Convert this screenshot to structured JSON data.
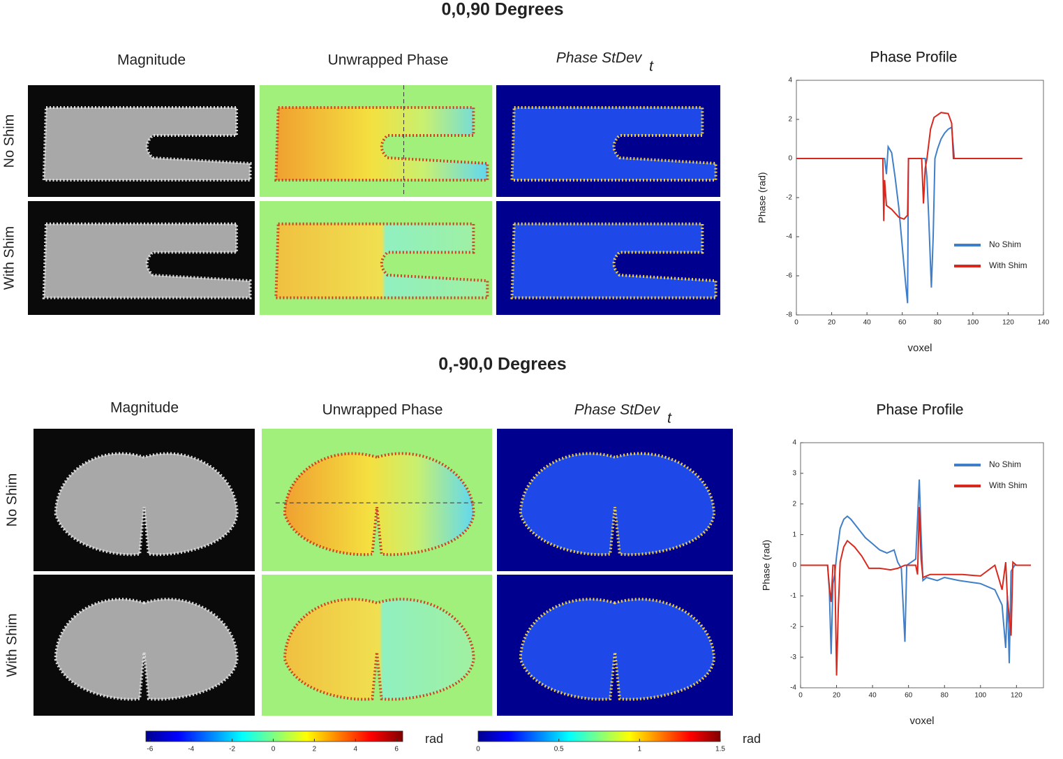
{
  "figure": {
    "sections": [
      {
        "title": "0,0,90 Degrees",
        "columns": [
          "Magnitude",
          "Unwrapped Phase",
          "Phase StDev",
          "Phase Profile"
        ],
        "subscript": "t",
        "rows": [
          "No Shim",
          "With Shim"
        ]
      },
      {
        "title": "0,-90,0 Degrees",
        "columns": [
          "Magnitude",
          "Unwrapped Phase",
          "Phase StDev",
          "Phase Profile"
        ],
        "subscript": "t",
        "rows": [
          "No Shim",
          "With Shim"
        ]
      }
    ],
    "colorbars": [
      {
        "lim": [
          -6.2,
          6.3
        ],
        "ticks": [
          -6,
          -4,
          -2,
          0,
          2,
          4,
          6
        ],
        "unit": "rad"
      },
      {
        "lim": [
          0,
          1.5
        ],
        "ticks": [
          0,
          0.5,
          1,
          1.5
        ],
        "unit": "rad"
      }
    ]
  },
  "chart_data": [
    {
      "type": "line",
      "title": "Phase Profile",
      "xlabel": "voxel",
      "ylabel": "Phase (rad)",
      "xlim": [
        0,
        140
      ],
      "ylim": [
        -8,
        4
      ],
      "xticks": [
        0,
        20,
        40,
        60,
        80,
        100,
        120,
        140
      ],
      "yticks": [
        -8,
        -6,
        -4,
        -2,
        0,
        2,
        4
      ],
      "legend": "lower right",
      "series": [
        {
          "name": "No Shim",
          "color": "#3f7ec8",
          "x": [
            0,
            50,
            51,
            52,
            54,
            56,
            58,
            60,
            62,
            63,
            63.5,
            73,
            74,
            75,
            76.5,
            77.5,
            78.5,
            80,
            82,
            84,
            86,
            88,
            89.5,
            128
          ],
          "y": [
            0,
            0,
            -0.8,
            0.6,
            0.3,
            -1,
            -2.5,
            -4.5,
            -6.5,
            -7.4,
            0,
            0,
            -1,
            -3,
            -6.6,
            -4,
            0,
            0.5,
            1,
            1.3,
            1.5,
            1.6,
            0,
            0
          ]
        },
        {
          "name": "With Shim",
          "color": "#d8281e",
          "x": [
            0,
            49,
            49.5,
            50,
            51,
            54,
            58,
            61,
            63,
            63.5,
            71,
            72,
            73,
            74,
            76,
            78,
            82,
            86,
            88,
            89,
            128
          ],
          "y": [
            0,
            0,
            -3.2,
            -1.1,
            -2.4,
            -2.6,
            -3,
            -3.1,
            -2.9,
            0,
            0,
            -2.3,
            -0.5,
            0,
            1.5,
            2.1,
            2.35,
            2.3,
            1.8,
            0,
            0
          ]
        }
      ]
    },
    {
      "type": "line",
      "title": "Phase Profile",
      "xlabel": "voxel",
      "ylabel": "Phase (rad)",
      "xlim": [
        0,
        135
      ],
      "ylim": [
        -4,
        4
      ],
      "xticks": [
        0,
        20,
        40,
        60,
        80,
        100,
        120
      ],
      "yticks": [
        -4,
        -3,
        -2,
        -1,
        0,
        1,
        2,
        3,
        4
      ],
      "legend": "upper right",
      "series": [
        {
          "name": "No Shim",
          "color": "#3f7ec8",
          "x": [
            0,
            15,
            16,
            17,
            18,
            19,
            20,
            22,
            24,
            26,
            28,
            32,
            36,
            40,
            44,
            48,
            52,
            54,
            56,
            58,
            59,
            64,
            66,
            67,
            68,
            70,
            76,
            80,
            88,
            100,
            108,
            112,
            114,
            115,
            116,
            117,
            119,
            128
          ],
          "y": [
            0,
            0,
            -0.8,
            -2.9,
            -0.6,
            -0.3,
            0.3,
            1.2,
            1.5,
            1.6,
            1.5,
            1.2,
            0.9,
            0.7,
            0.5,
            0.4,
            0.5,
            0.1,
            -0.1,
            -2.5,
            0,
            0.2,
            2.8,
            1,
            -0.5,
            -0.4,
            -0.5,
            -0.4,
            -0.5,
            -0.6,
            -0.8,
            -1.3,
            -2.7,
            -1,
            -3.2,
            -0.2,
            0,
            0
          ]
        },
        {
          "name": "With Shim",
          "color": "#d8281e",
          "x": [
            0,
            15,
            16,
            17,
            18,
            19,
            20,
            21,
            22,
            24,
            26,
            30,
            34,
            38,
            44,
            50,
            54,
            58,
            64,
            65,
            66,
            67,
            68,
            72,
            80,
            90,
            100,
            108,
            110,
            112,
            114,
            115,
            117,
            118,
            120,
            128
          ],
          "y": [
            0,
            0,
            -0.7,
            -1.2,
            0,
            0,
            -3.6,
            -1.4,
            0.1,
            0.6,
            0.8,
            0.6,
            0.3,
            -0.1,
            -0.1,
            -0.15,
            -0.1,
            0,
            0,
            -0.3,
            1.9,
            0.2,
            -0.4,
            -0.3,
            -0.3,
            -0.3,
            -0.35,
            0,
            -0.4,
            -0.8,
            0.1,
            -1.1,
            -2.3,
            0.1,
            0,
            0
          ]
        }
      ]
    }
  ]
}
